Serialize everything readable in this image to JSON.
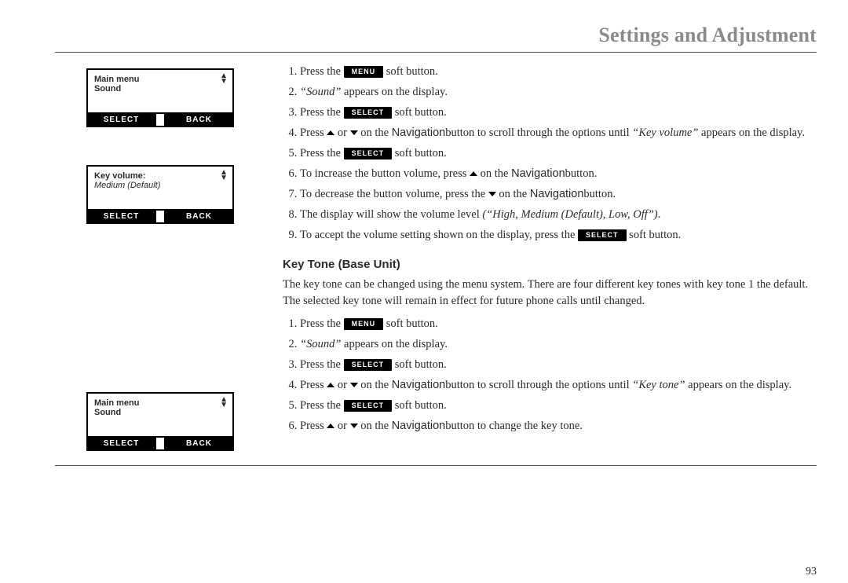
{
  "title": "Settings and Adjustment",
  "pageNumber": "93",
  "buttons": {
    "menu": "MENU",
    "select": "SELECT",
    "back": "BACK"
  },
  "screens": {
    "mainMenu": {
      "line1": "Main menu",
      "line2": "Sound"
    },
    "keyVolume": {
      "line1": "Key volume:",
      "line2": "Medium (Default)"
    }
  },
  "list1": {
    "i1a": "Press the ",
    "i1b": " soft button.",
    "i2a": "“Sound”",
    "i2b": " appears on the display.",
    "i3a": "Press the ",
    "i3b": " soft button.",
    "i4a": "Press ",
    "i4b": " or ",
    "i4c": " on the ",
    "i4nav": "Navigation",
    "i4d": "button to scroll through the options until ",
    "i4e": "“Key volume”",
    "i4f": " appears on the display.",
    "i5a": "Press the ",
    "i5b": " soft button.",
    "i6a": "To increase the button volume, press ",
    "i6b": " on the ",
    "i6c": "button.",
    "i7a": "To decrease the button volume, press the ",
    "i7b": " on the ",
    "i7c": "button.",
    "i8a": "The display will show the volume level ",
    "i8b": "(“High, Medium (Default), Low, Off”)",
    "i8c": ".",
    "i9a": "To accept the volume setting shown on the display, press the ",
    "i9b": " soft button."
  },
  "section2": {
    "heading": "Key Tone (Base Unit)",
    "intro": "The key tone can be changed using the menu system. There are four different key tones with key tone 1 the default. The selected key tone will remain in effect for future phone calls until changed."
  },
  "list2": {
    "i1a": "Press the ",
    "i1b": " soft button.",
    "i2a": "“Sound”",
    "i2b": " appears on the display.",
    "i3a": "Press the ",
    "i3b": " soft button.",
    "i4a": "Press ",
    "i4b": " or ",
    "i4c": " on the ",
    "i4nav": "Navigation",
    "i4d": "button to scroll through the options until ",
    "i4e": "“Key tone”",
    "i4f": " appears on the display.",
    "i5a": "Press the ",
    "i5b": " soft button.",
    "i6a": "Press ",
    "i6b": " or ",
    "i6c": " on the ",
    "i6d": "button to change the key tone."
  }
}
